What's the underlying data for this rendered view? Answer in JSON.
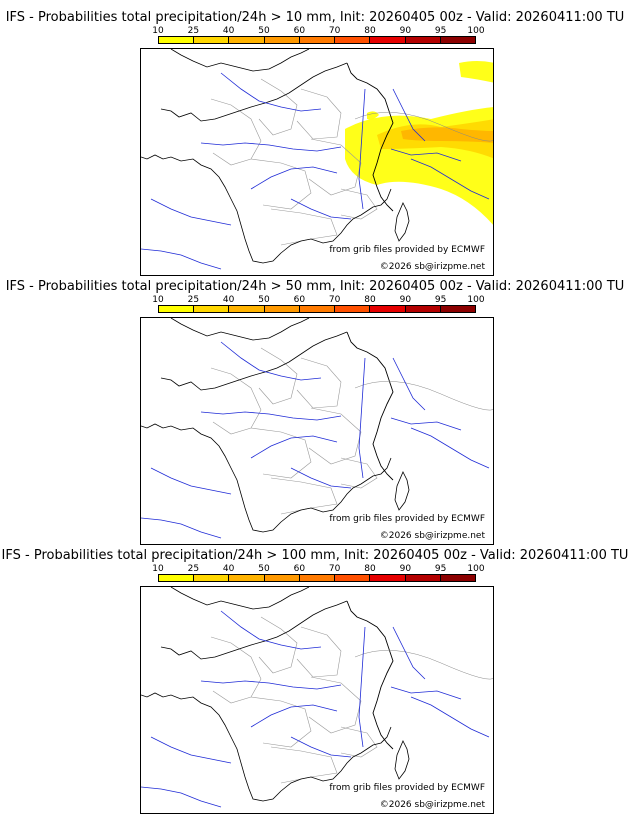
{
  "colorbar": {
    "ticks": [
      "10",
      "25",
      "40",
      "50",
      "60",
      "70",
      "80",
      "90",
      "95",
      "100"
    ],
    "colors": [
      "#ffff00",
      "#ffd700",
      "#ffb300",
      "#ff9900",
      "#ff7a00",
      "#ff5000",
      "#e60000",
      "#b40000",
      "#8c0000",
      "#5a0000"
    ]
  },
  "panels": [
    {
      "title": "IFS - Probabilities total precipitation/24h > 10 mm, Init: 20260405 00z - Valid: 20260411:00 TU",
      "source_note": "from grib files provided by ECMWF",
      "copyright": "©2026 sb@irizpme.net",
      "shaded": true
    },
    {
      "title": "IFS - Probabilities total precipitation/24h > 50 mm, Init: 20260405 00z - Valid: 20260411:00 TU",
      "source_note": "from grib files provided by ECMWF",
      "copyright": "©2026 sb@irizpme.net",
      "shaded": false
    },
    {
      "title": "IFS - Probabilities total precipitation/24h > 100 mm, Init: 20260405 00z - Valid: 20260411:00 TU",
      "source_note": "from grib files provided by ECMWF",
      "copyright": "©2026 sb@irizpme.net",
      "shaded": false
    }
  ],
  "icons": {
    "map": "france-base-map",
    "shading": "precipitation-probability-shading"
  }
}
